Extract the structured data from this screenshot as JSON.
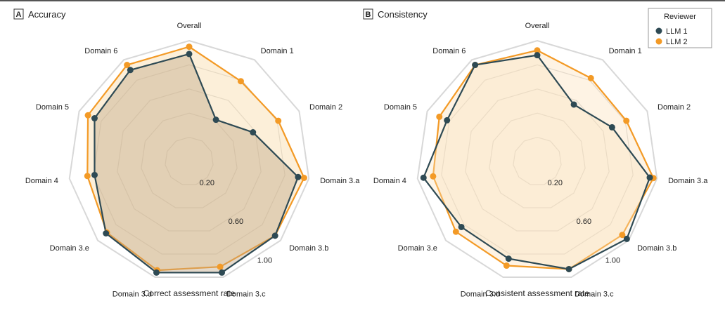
{
  "chart_data": [
    {
      "type": "radar",
      "panel_letter": "A",
      "title": "Accuracy",
      "xlabel": "Correct assessment rate",
      "axes": [
        "Overall",
        "Domain 1",
        "Domain 2",
        "Domain 3.a",
        "Domain 3.b",
        "Domain 3.c",
        "Domain 3.d",
        "Domain 3.e",
        "Domain 4",
        "Domain 5",
        "Domain 6"
      ],
      "radial_ticks": [
        "0.20",
        "0.60",
        "1.00"
      ],
      "rlim": [
        0,
        1
      ],
      "series": [
        {
          "name": "LLM 1",
          "values": [
            0.89,
            0.41,
            0.58,
            0.91,
            0.94,
            0.96,
            0.96,
            0.91,
            0.79,
            0.86,
            0.9
          ]
        },
        {
          "name": "LLM 2",
          "values": [
            0.95,
            0.79,
            0.81,
            0.96,
            0.94,
            0.91,
            0.94,
            0.9,
            0.85,
            0.92,
            0.95
          ]
        }
      ]
    },
    {
      "type": "radar",
      "panel_letter": "B",
      "title": "Consistency",
      "xlabel": "Consistent assessment rate",
      "axes": [
        "Overall",
        "Domain 1",
        "Domain 2",
        "Domain 3.a",
        "Domain 3.b",
        "Domain 3.c",
        "Domain 3.d",
        "Domain 3.e",
        "Domain 4",
        "Domain 5",
        "Domain 6"
      ],
      "radial_ticks": [
        "0.20",
        "0.60",
        "1.00"
      ],
      "rlim": [
        0,
        1
      ],
      "series": [
        {
          "name": "LLM 1",
          "values": [
            0.88,
            0.56,
            0.68,
            0.94,
            0.98,
            0.93,
            0.84,
            0.83,
            0.95,
            0.82,
            0.95
          ]
        },
        {
          "name": "LLM 2",
          "values": [
            0.92,
            0.82,
            0.81,
            0.97,
            0.93,
            0.93,
            0.9,
            0.89,
            0.87,
            0.89,
            0.95
          ]
        }
      ]
    }
  ],
  "legend": {
    "title": "Reviewer",
    "placement": "top-right",
    "items": [
      {
        "label": "LLM 1",
        "color": "#2e4a54"
      },
      {
        "label": "LLM 2",
        "color": "#f39a26"
      }
    ]
  },
  "colors": {
    "llm1": "#2e4a54",
    "llm2": "#f39a26",
    "grid": "#cfcfcf",
    "outer_ring": "#d8d8d8"
  }
}
